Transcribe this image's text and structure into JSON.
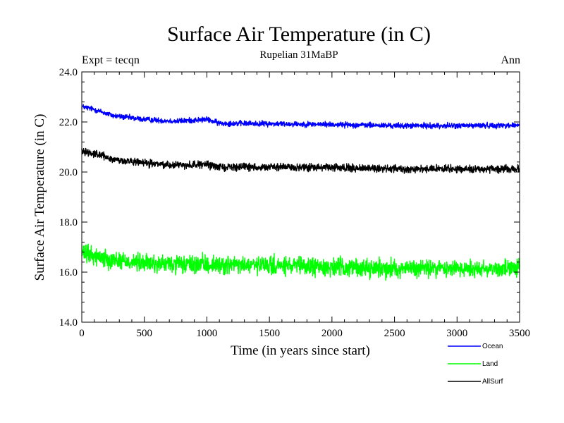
{
  "chart_data": {
    "type": "line",
    "title": "Surface Air Temperature (in C)",
    "subtitle": "Rupelian  31MaBP",
    "left_label": "Expt = tecqn",
    "right_label": "Ann",
    "xlabel": "Time (in years since start)",
    "ylabel": "Surface Air Temperature (in C)",
    "xlim": [
      0,
      3500
    ],
    "ylim": [
      14.0,
      24.0
    ],
    "x_ticks": [
      0,
      500,
      1000,
      1500,
      2000,
      2500,
      3000,
      3500
    ],
    "x_tick_labels": [
      "0",
      "500",
      "1000",
      "1500",
      "2000",
      "2500",
      "3000",
      "3500"
    ],
    "y_ticks": [
      14.0,
      16.0,
      18.0,
      20.0,
      22.0,
      24.0
    ],
    "y_tick_labels": [
      "14.0",
      "16.0",
      "18.0",
      "20.0",
      "22.0",
      "24.0"
    ],
    "legend_position": "bottom-right, below plot",
    "series": [
      {
        "name": "Ocean",
        "color": "#0000ff",
        "noise": 0.09,
        "trend": [
          [
            0,
            22.62
          ],
          [
            100,
            22.5
          ],
          [
            250,
            22.25
          ],
          [
            500,
            22.1
          ],
          [
            750,
            22.03
          ],
          [
            1000,
            22.1
          ],
          [
            1100,
            21.95
          ],
          [
            1500,
            21.93
          ],
          [
            2000,
            21.9
          ],
          [
            2500,
            21.85
          ],
          [
            3000,
            21.85
          ],
          [
            3500,
            21.87
          ]
        ]
      },
      {
        "name": "Land",
        "color": "#00ff00",
        "noise": 0.3,
        "trend": [
          [
            0,
            16.75
          ],
          [
            100,
            16.65
          ],
          [
            250,
            16.5
          ],
          [
            500,
            16.35
          ],
          [
            750,
            16.3
          ],
          [
            1000,
            16.3
          ],
          [
            1500,
            16.25
          ],
          [
            2000,
            16.2
          ],
          [
            2500,
            16.15
          ],
          [
            3000,
            16.15
          ],
          [
            3500,
            16.15
          ]
        ]
      },
      {
        "name": "AllSurf",
        "color": "#000000",
        "noise": 0.12,
        "trend": [
          [
            0,
            20.85
          ],
          [
            100,
            20.75
          ],
          [
            250,
            20.5
          ],
          [
            500,
            20.35
          ],
          [
            750,
            20.28
          ],
          [
            1000,
            20.3
          ],
          [
            1100,
            20.2
          ],
          [
            1500,
            20.2
          ],
          [
            2000,
            20.17
          ],
          [
            2500,
            20.13
          ],
          [
            3000,
            20.12
          ],
          [
            3500,
            20.12
          ]
        ]
      }
    ]
  }
}
